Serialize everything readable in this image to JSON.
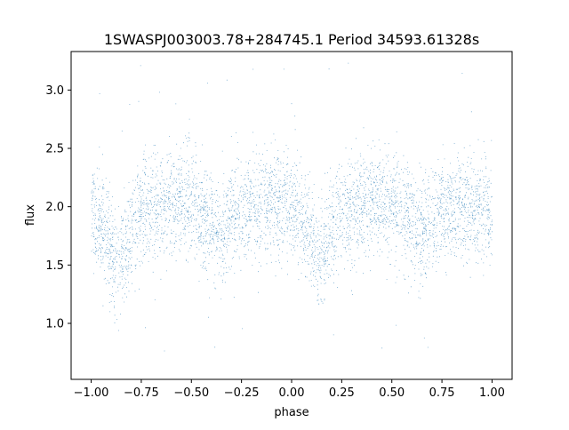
{
  "chart_data": {
    "type": "scatter",
    "title": "1SWASPJ003003.78+284745.1 Period 34593.61328s",
    "xlabel": "phase",
    "ylabel": "flux",
    "xlim": [
      -1.1,
      1.1
    ],
    "ylim": [
      0.52,
      3.33
    ],
    "xticks": [
      -1.0,
      -0.75,
      -0.5,
      -0.25,
      0.0,
      0.25,
      0.5,
      0.75,
      1.0
    ],
    "xtick_labels": [
      "−1.00",
      "−0.75",
      "−0.50",
      "−0.25",
      "0.00",
      "0.25",
      "0.50",
      "0.75",
      "1.00"
    ],
    "yticks": [
      1.0,
      1.5,
      2.0,
      2.5,
      3.0
    ],
    "ytick_labels": [
      "1.0",
      "1.5",
      "2.0",
      "2.5",
      "3.0"
    ],
    "grid": false,
    "legend": "none",
    "point_color": "#1f77b4",
    "light_curve_profile": {
      "phase": [
        -1.0,
        -0.95,
        -0.9,
        -0.87,
        -0.85,
        -0.82,
        -0.75,
        -0.6,
        -0.5,
        -0.4,
        -0.35,
        -0.25,
        -0.1,
        0.0,
        0.05,
        0.1,
        0.13,
        0.15,
        0.18,
        0.25,
        0.4,
        0.5,
        0.6,
        0.65,
        0.75,
        0.9,
        1.0
      ],
      "median_flux": [
        1.95,
        1.85,
        1.62,
        1.52,
        1.55,
        1.72,
        1.98,
        2.05,
        2.02,
        1.85,
        1.78,
        1.98,
        2.03,
        1.98,
        1.9,
        1.72,
        1.52,
        1.55,
        1.72,
        1.97,
        2.03,
        2.02,
        1.85,
        1.78,
        1.97,
        2.02,
        1.95
      ],
      "scatter_sigma": 0.22,
      "points_per_cycle": 26000,
      "outlier_range": [
        0.6,
        3.25
      ]
    }
  }
}
